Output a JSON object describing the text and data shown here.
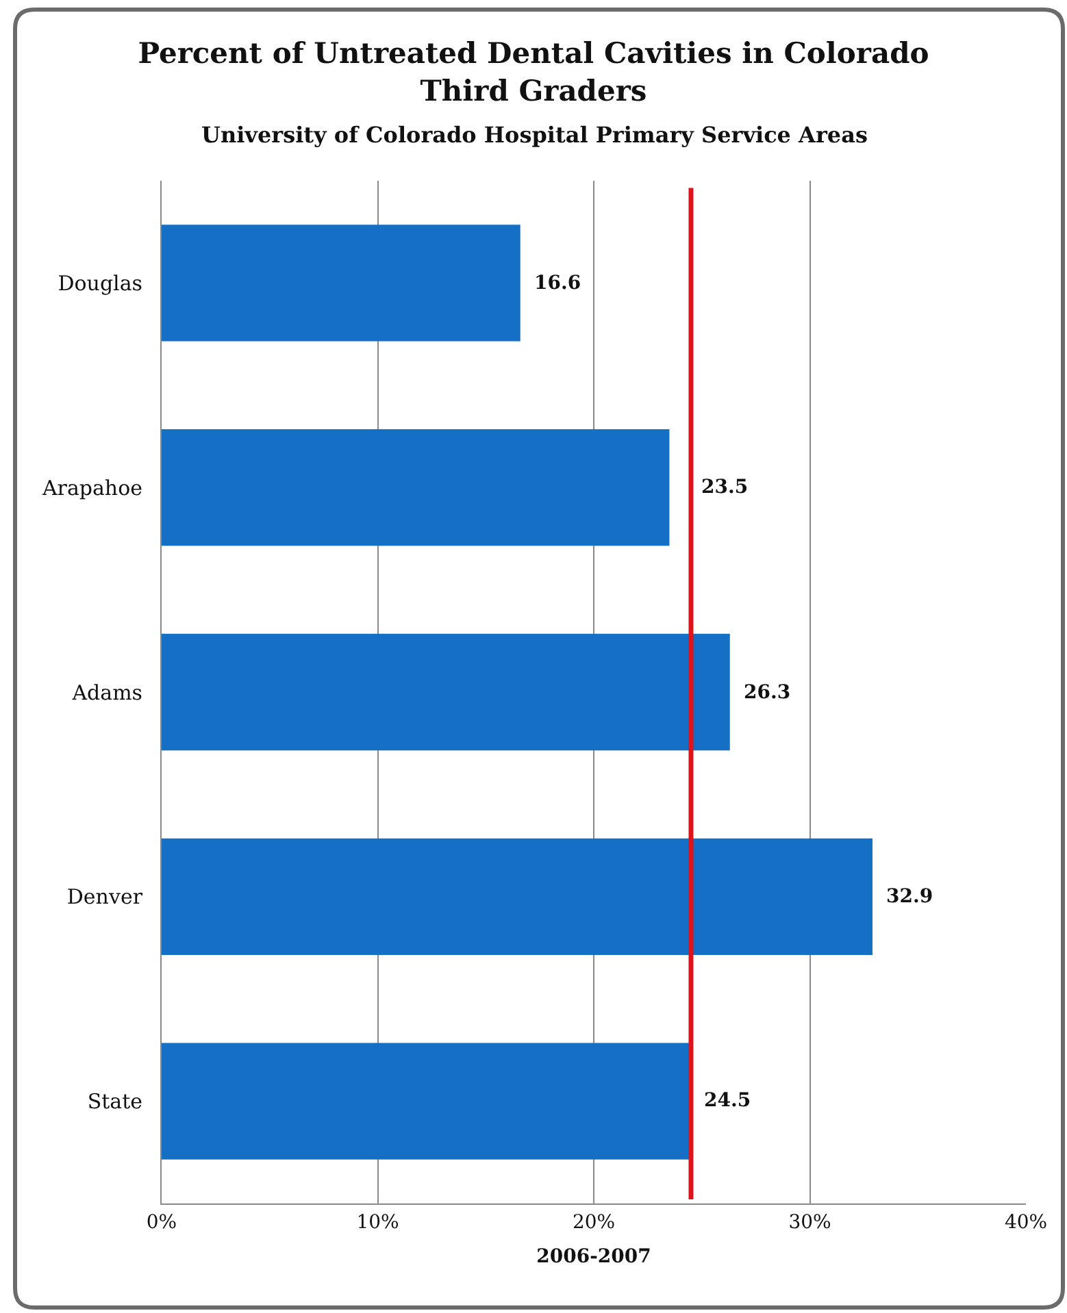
{
  "chart_data": {
    "type": "bar",
    "orientation": "horizontal",
    "title": "Percent of Untreated Dental Cavities in Colorado Third Graders",
    "subtitle": "University of Colorado Hospital Primary Service Areas",
    "xlabel": "2006-2007",
    "categories": [
      "Douglas",
      "Arapahoe",
      "Adams",
      "Denver",
      "State"
    ],
    "values": [
      16.6,
      23.5,
      26.3,
      32.9,
      24.5
    ],
    "color": "#146fc5",
    "data_labels": true,
    "xlim": [
      0,
      40
    ],
    "xticks": [
      {
        "value": 0,
        "label": "0%"
      },
      {
        "value": 10,
        "label": "10%"
      },
      {
        "value": 20,
        "label": "20%"
      },
      {
        "value": 30,
        "label": "30%"
      },
      {
        "value": 40,
        "label": "40%"
      }
    ],
    "grid": "x",
    "ref_lines": [
      {
        "axis": "x",
        "value": 24.5,
        "color": "#e0131b",
        "line_style": "solid"
      }
    ]
  }
}
